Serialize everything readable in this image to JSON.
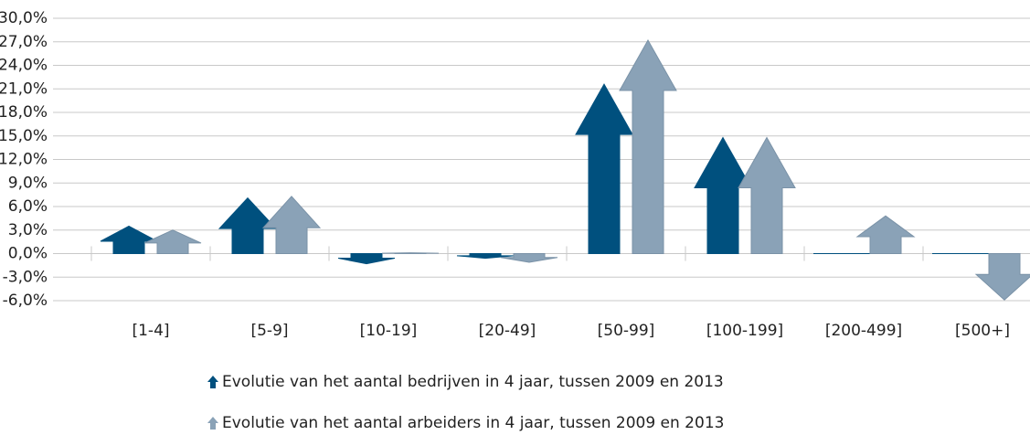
{
  "chart_data": {
    "type": "bar",
    "categories": [
      "[1-4]",
      "[5-9]",
      "[10-19]",
      "[20-49]",
      "[50-99]",
      "[100-199]",
      "[200-499]",
      "[500+]"
    ],
    "series": [
      {
        "name": "Evolutie van het aantal bedrijven in 4 jaar, tussen 2009 en 2013",
        "color": "#00507e",
        "values": [
          3.5,
          7.1,
          -1.3,
          -0.6,
          21.6,
          14.8,
          0,
          0
        ]
      },
      {
        "name": "Evolutie van het aantal arbeiders in 4 jaar, tussen 2009 en 2013",
        "color": "#8aa2b7",
        "values": [
          3.0,
          7.3,
          0.1,
          -1.1,
          27.2,
          14.8,
          4.8,
          -5.9
        ]
      }
    ],
    "ylim": [
      -6,
      30
    ],
    "yticks": [
      {
        "value": -6,
        "label": "-6,0%"
      },
      {
        "value": -3,
        "label": "-3,0%"
      },
      {
        "value": 0,
        "label": "0,0%"
      },
      {
        "value": 3,
        "label": "3,0%"
      },
      {
        "value": 6,
        "label": "6,0%"
      },
      {
        "value": 9,
        "label": "9,0%"
      },
      {
        "value": 12,
        "label": "12,0%"
      },
      {
        "value": 15,
        "label": "15,0%"
      },
      {
        "value": 18,
        "label": "18,0%"
      },
      {
        "value": 21,
        "label": "21,0%"
      },
      {
        "value": 24,
        "label": "24,0%"
      },
      {
        "value": 27,
        "label": "27,0%"
      },
      {
        "value": 30,
        "label": "30,0%"
      }
    ],
    "grid": true
  }
}
